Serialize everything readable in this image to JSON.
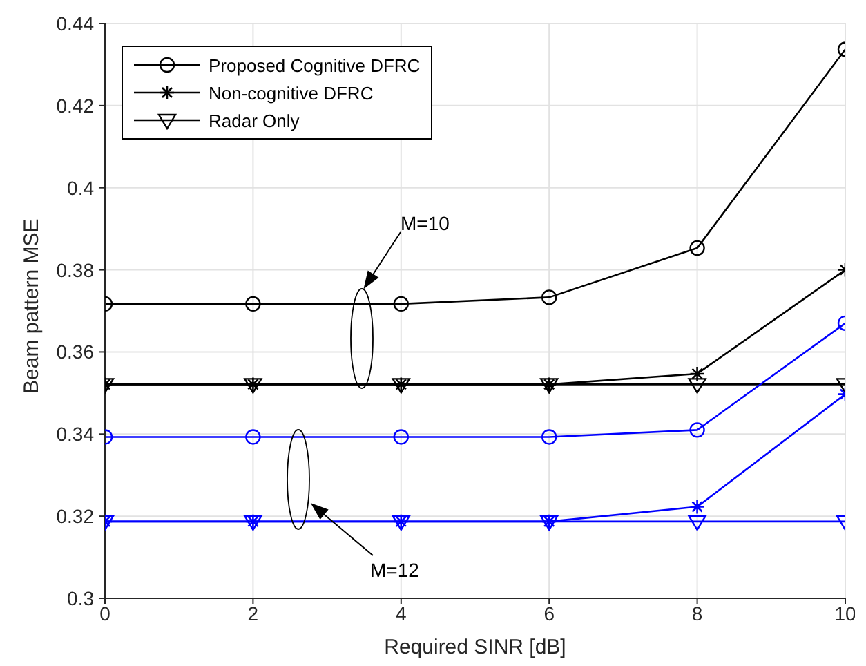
{
  "chart_data": {
    "type": "line",
    "xlabel": "Required SINR [dB]",
    "ylabel": "Beam pattern MSE",
    "x": [
      0,
      2,
      4,
      6,
      8,
      10
    ],
    "series": [
      {
        "name": "Proposed Cognitive DFRC",
        "color": "#000000",
        "marker": "circle",
        "values": [
          0.3717,
          0.3717,
          0.3717,
          0.3733,
          0.3853,
          0.4337
        ]
      },
      {
        "name": "Non-cognitive DFRC",
        "color": "#000000",
        "marker": "cross",
        "values": [
          0.3521,
          0.3521,
          0.3521,
          0.3521,
          0.3547,
          0.38
        ]
      },
      {
        "name": "Radar Only",
        "color": "#000000",
        "marker": "triangle",
        "values": [
          0.3521,
          0.3521,
          0.3521,
          0.3521,
          0.3521,
          0.3521
        ]
      },
      {
        "color": "#0000ff",
        "marker": "circle",
        "values": [
          0.3393,
          0.3393,
          0.3393,
          0.3393,
          0.341,
          0.367
        ]
      },
      {
        "color": "#0000ff",
        "marker": "cross",
        "values": [
          0.3187,
          0.3187,
          0.3187,
          0.3187,
          0.3223,
          0.3497
        ]
      },
      {
        "color": "#0000ff",
        "marker": "triangle",
        "values": [
          0.3187,
          0.3187,
          0.3187,
          0.3187,
          0.3187,
          0.3187
        ]
      }
    ],
    "xlim": [
      0,
      10
    ],
    "xticks": [
      0,
      2,
      4,
      6,
      8,
      10
    ],
    "ylim": [
      0.3,
      0.44
    ],
    "yticks": [
      0.3,
      0.32,
      0.34,
      0.36,
      0.38,
      0.4,
      0.42,
      0.44
    ],
    "grid": true,
    "legend": "top left",
    "line_style": "solid",
    "annotations": [
      "M=10",
      "M=12"
    ]
  }
}
